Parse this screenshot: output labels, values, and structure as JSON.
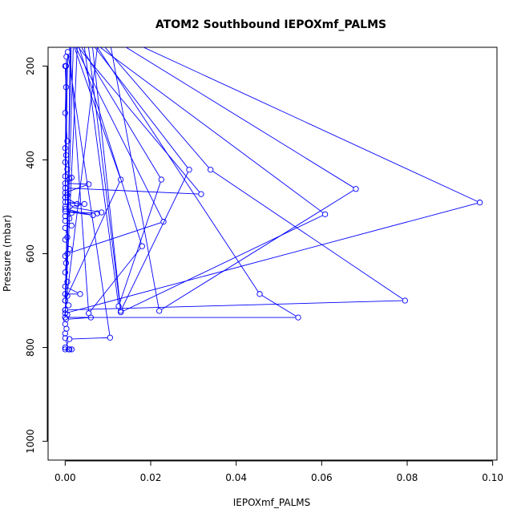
{
  "chart_data": {
    "type": "line",
    "title": "ATOM2 Southbound IEPOXmf_PALMS",
    "xlabel": "IEPOXmf_PALMS",
    "ylabel": "Pressure (mbar)",
    "xlim": [
      -0.004,
      0.101
    ],
    "ylim": [
      1040,
      160
    ],
    "y_reversed": true,
    "x_ticks": [
      0.0,
      0.02,
      0.04,
      0.06,
      0.08,
      0.1
    ],
    "x_tick_labels": [
      "0.00",
      "0.02",
      "0.04",
      "0.06",
      "0.08",
      "0.10"
    ],
    "y_ticks": [
      200,
      400,
      600,
      800,
      1000
    ],
    "y_tick_labels": [
      "200",
      "400",
      "600",
      "800",
      "1000"
    ],
    "grid": false,
    "legend": "none",
    "colors": {
      "series": "#0000ff",
      "axes": "#000000"
    },
    "marker": "open-circle",
    "series": [
      {
        "values": [
          [
            0.001,
            130
          ],
          [
            0.013,
            442
          ],
          [
            0.0,
            700
          ],
          [
            0.0015,
            125
          ],
          [
            0.0225,
            442
          ],
          [
            0.0125,
            712
          ],
          [
            0.004,
            125
          ],
          [
            0.029,
            421
          ],
          [
            0.013,
            722
          ],
          [
            0.006,
            125
          ],
          [
            0.034,
            421
          ],
          [
            0.0795,
            700
          ],
          [
            0.0,
            720
          ],
          [
            0.008,
            125
          ],
          [
            0.068,
            462
          ],
          [
            0.022,
            722
          ],
          [
            0.01,
            125
          ],
          [
            0.097,
            491
          ],
          [
            0.0,
            727
          ],
          [
            0.003,
            125
          ],
          [
            0.0608,
            516
          ],
          [
            0.013,
            725
          ],
          [
            0.005,
            125
          ],
          [
            0.0455,
            686
          ],
          [
            0.0545,
            736
          ],
          [
            0.0,
            736
          ],
          [
            0.002,
            125
          ],
          [
            0.018,
            584
          ],
          [
            0.0055,
            727
          ],
          [
            0.0008,
            130
          ],
          [
            0.023,
            532
          ],
          [
            0.0005,
            600
          ],
          [
            0.0012,
            140
          ],
          [
            0.0318,
            473
          ],
          [
            0.0,
            460
          ],
          [
            0.0003,
            180
          ],
          [
            0.0,
            480
          ],
          [
            0.0002,
            200
          ],
          [
            0.0,
            500
          ],
          [
            0.0006,
            170
          ],
          [
            0.0105,
            779
          ],
          [
            0.001,
            782
          ],
          [
            0.0,
            800
          ],
          [
            0.001,
            804
          ],
          [
            0.0015,
            804
          ],
          [
            0.0,
            804
          ],
          [
            0.0008,
            804
          ],
          [
            0.0,
            780
          ],
          [
            0.0,
            770
          ],
          [
            0.0003,
            760
          ],
          [
            0.0,
            750
          ],
          [
            0.0002,
            740
          ],
          [
            0.006,
            736
          ],
          [
            0.0,
            736
          ],
          [
            0.0005,
            730
          ],
          [
            0.0,
            720
          ],
          [
            0.0008,
            710
          ],
          [
            0.0,
            700
          ],
          [
            0.0005,
            690
          ],
          [
            0.0,
            686
          ],
          [
            0.0035,
            686
          ],
          [
            0.0,
            670
          ],
          [
            0.0005,
            660
          ],
          [
            0.0,
            640
          ],
          [
            0.0002,
            620
          ],
          [
            0.0,
            605
          ],
          [
            0.001,
            590
          ],
          [
            0.0,
            570
          ],
          [
            0.0005,
            565
          ],
          [
            0.0,
            545
          ],
          [
            0.0015,
            540
          ],
          [
            0.0,
            530
          ],
          [
            0.001,
            525
          ],
          [
            0.0,
            520
          ],
          [
            0.0015,
            513
          ],
          [
            0.0,
            505
          ],
          [
            0.0065,
            518
          ],
          [
            0.0,
            510
          ],
          [
            0.0075,
            514
          ],
          [
            0.0085,
            512
          ],
          [
            0.001,
            500
          ],
          [
            0.0045,
            494
          ],
          [
            0.0,
            490
          ],
          [
            0.0028,
            494
          ],
          [
            0.0,
            480
          ],
          [
            0.0005,
            475
          ],
          [
            0.0,
            470
          ],
          [
            0.0055,
            452
          ],
          [
            0.0,
            450
          ],
          [
            0.001,
            440
          ],
          [
            0.0015,
            438
          ],
          [
            0.0,
            435
          ],
          [
            0.0005,
            420
          ],
          [
            0.0,
            405
          ],
          [
            0.0002,
            390
          ],
          [
            0.0,
            375
          ],
          [
            0.0005,
            360
          ],
          [
            0.0,
            300
          ],
          [
            0.0002,
            245
          ],
          [
            0.0,
            200
          ]
        ]
      }
    ]
  }
}
